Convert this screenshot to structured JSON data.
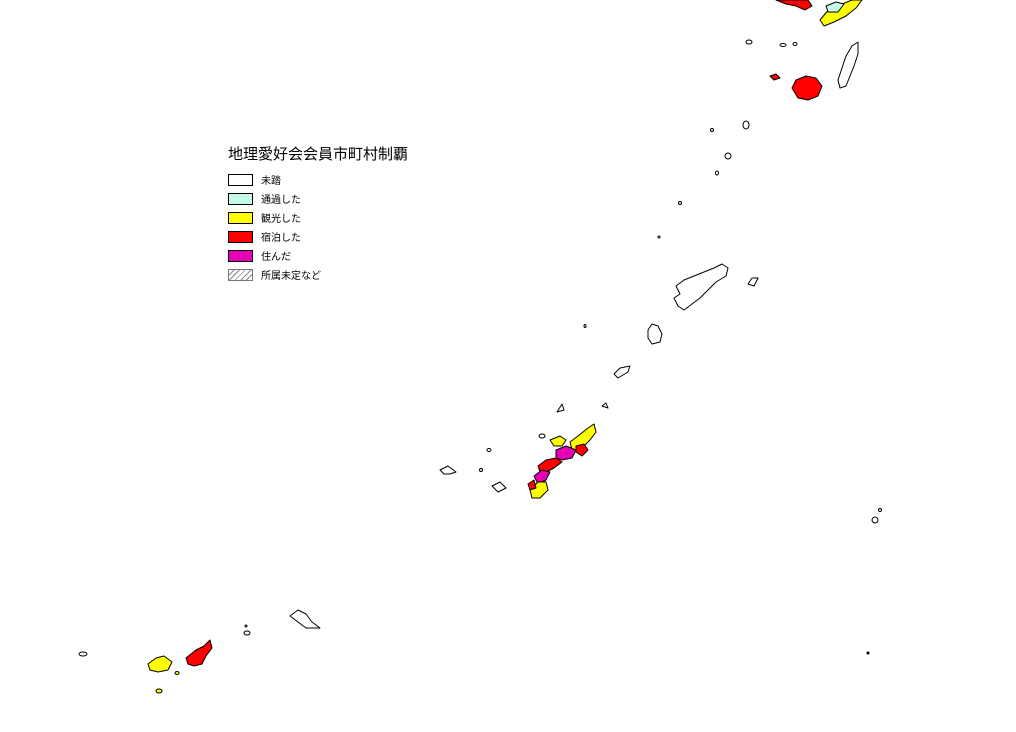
{
  "legend": {
    "title": "地理愛好会会員市町村制覇",
    "items": [
      {
        "label": "未踏",
        "color": "#ffffff"
      },
      {
        "label": "通過した",
        "color": "#c6fbe9"
      },
      {
        "label": "観光した",
        "color": "#ffff00"
      },
      {
        "label": "宿泊した",
        "color": "#ff0000"
      },
      {
        "label": "住んだ",
        "color": "#e600b4"
      },
      {
        "label": "所属未定など",
        "color": "hatch"
      }
    ]
  }
}
